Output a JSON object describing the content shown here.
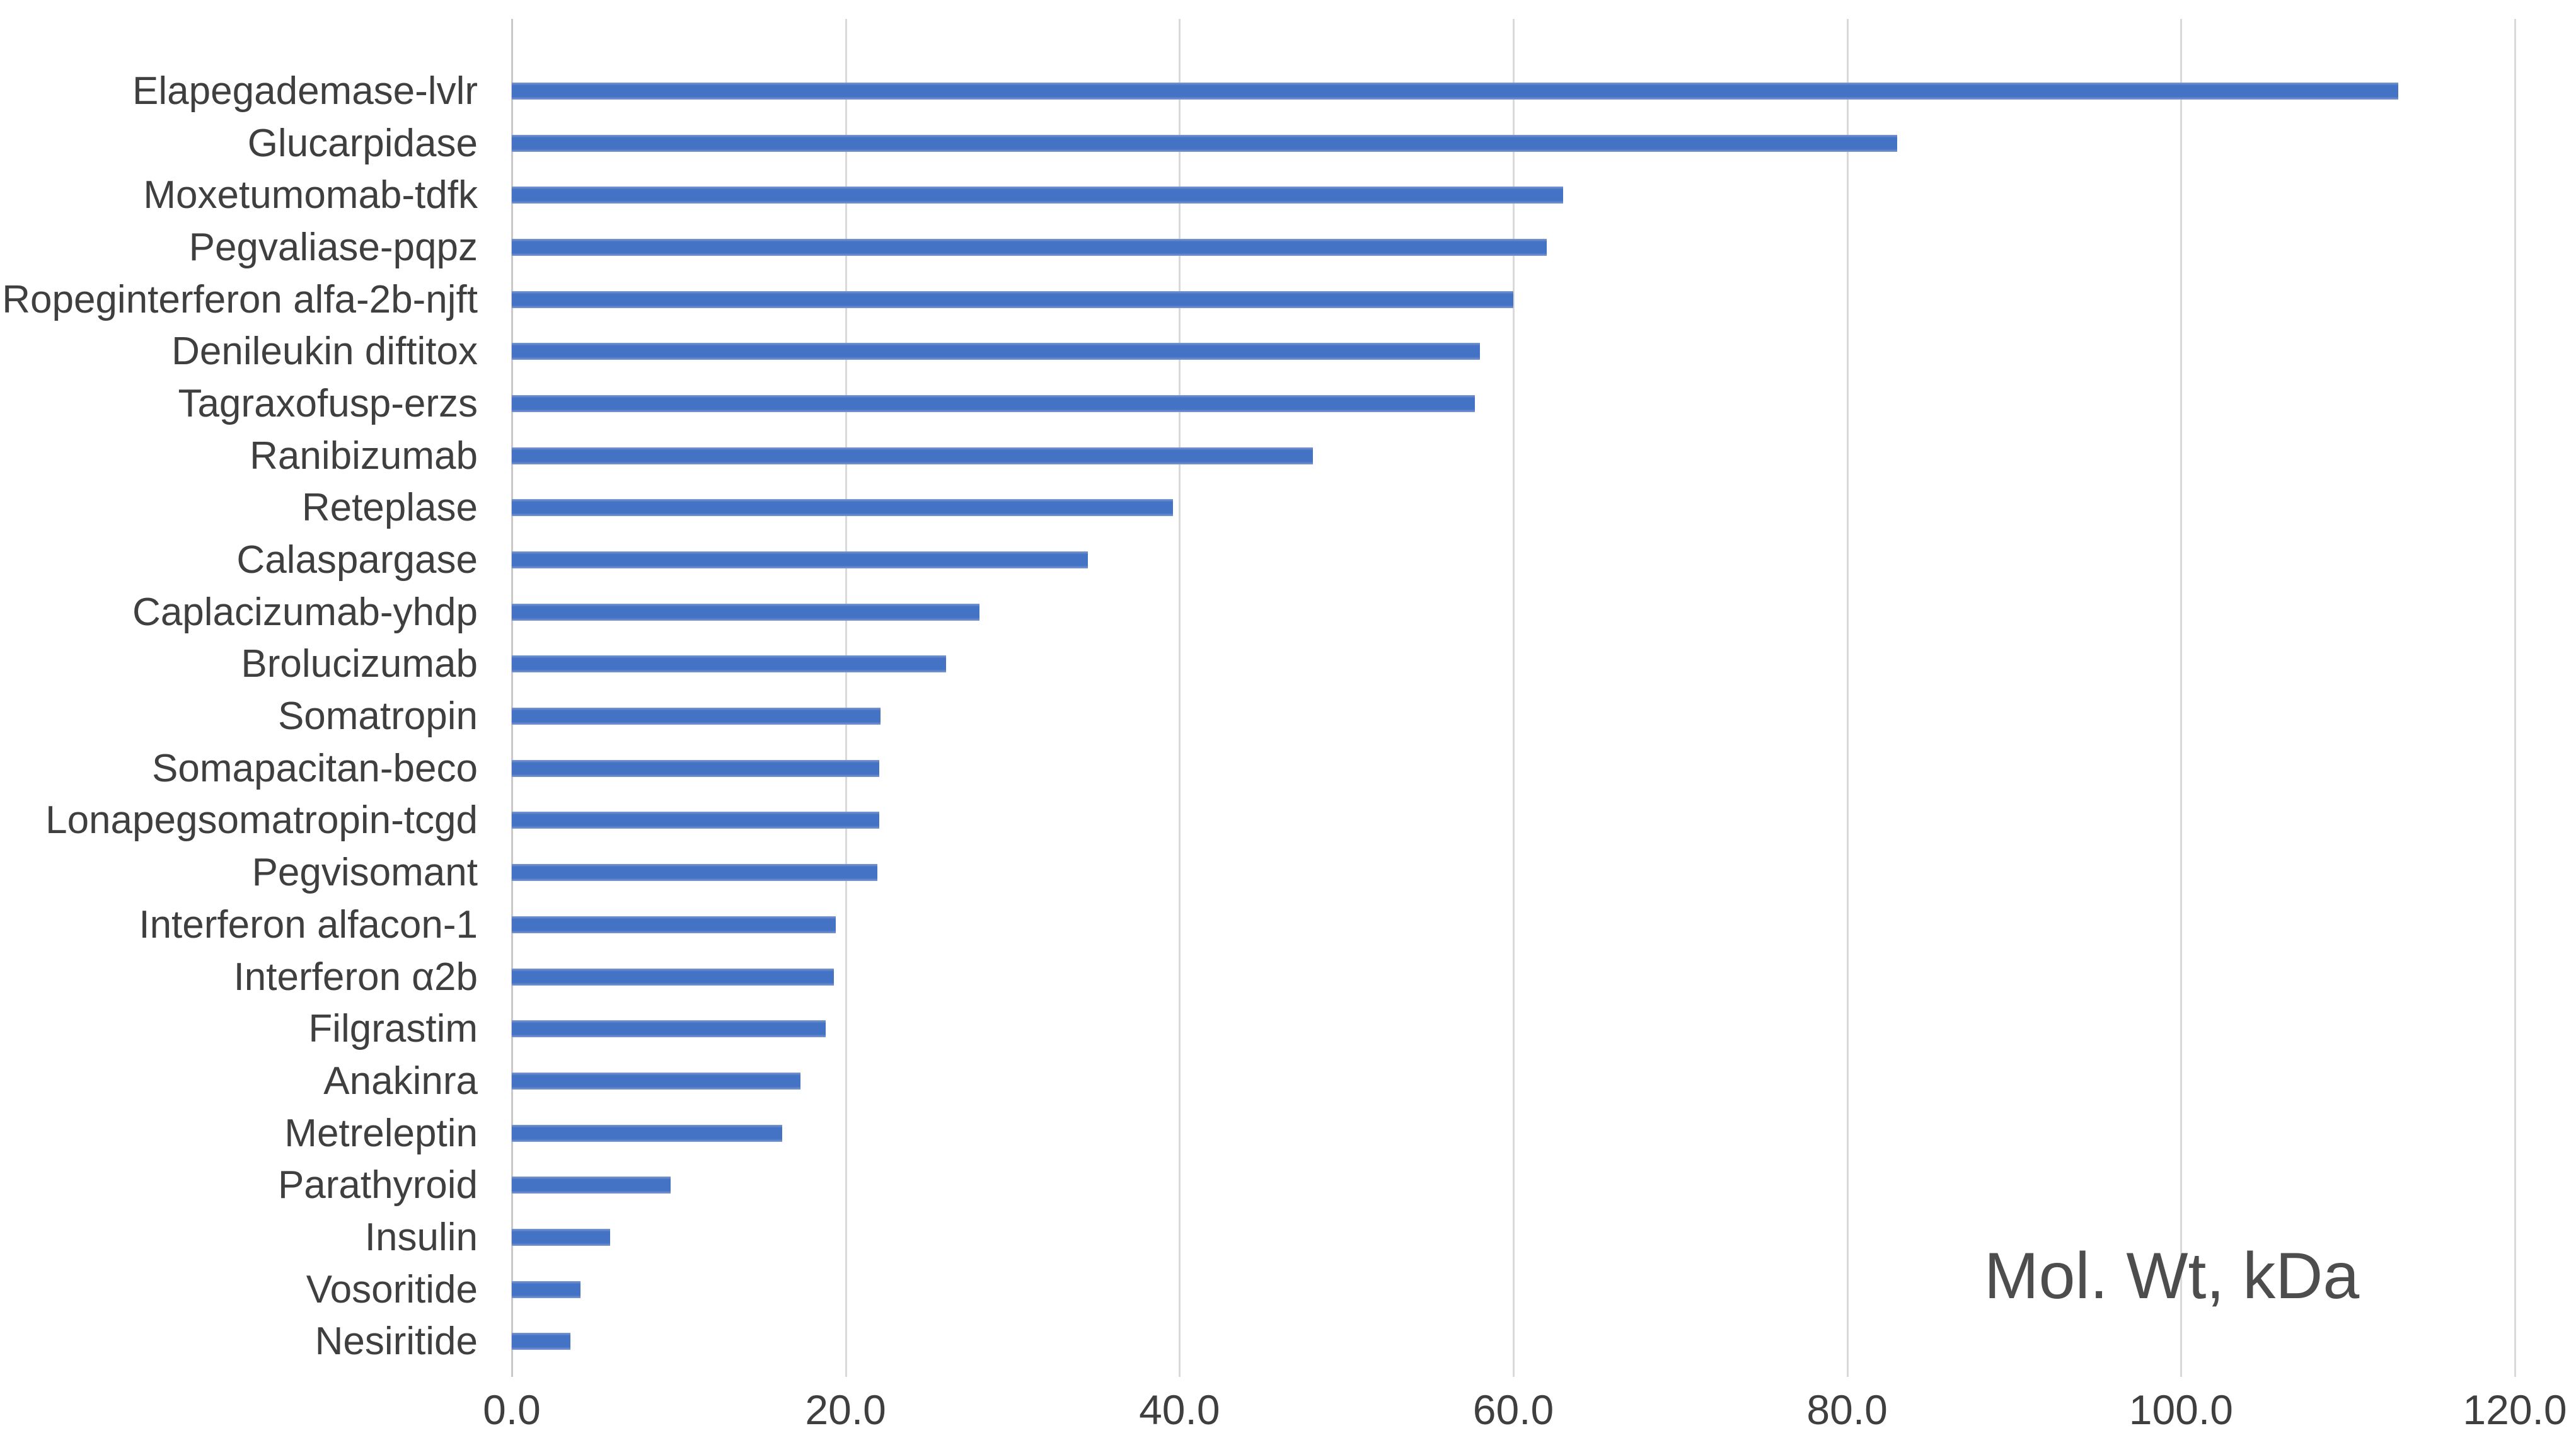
{
  "chart_data": {
    "type": "bar",
    "orientation": "horizontal",
    "title": "",
    "annotation": "Mol. Wt, kDa",
    "xlabel": "",
    "ylabel": "",
    "xlim": [
      0,
      120
    ],
    "grid": "vertical",
    "legend": "none",
    "x_tick_values": [
      0,
      20,
      40,
      60,
      80,
      100,
      120
    ],
    "x_tick_labels": [
      "0.0",
      "20.0",
      "40.0",
      "60.0",
      "80.0",
      "100.0",
      "120.0"
    ],
    "categories": [
      "Elapegademase-lvlr",
      "Glucarpidase",
      "Moxetumomab-tdfk",
      "Pegvaliase-pqpz",
      "Ropeginterferon alfa-2b-njft",
      "Denileukin diftitox",
      "Tagraxofusp-erzs",
      "Ranibizumab",
      "Reteplase",
      "Calaspargase",
      "Caplacizumab-yhdp",
      "Brolucizumab",
      "Somatropin",
      "Somapacitan-beco",
      "Lonapegsomatropin-tcgd",
      "Pegvisomant",
      "Interferon alfacon-1",
      "Interferon α2b",
      "Filgrastim",
      "Anakinra",
      "Metreleptin",
      "Parathyroid",
      "Insulin",
      "Vosoritide",
      "Nesiritide"
    ],
    "values": [
      113,
      83,
      63,
      62,
      60,
      58,
      57.7,
      48,
      39.6,
      34.5,
      28,
      26,
      22.1,
      22,
      22,
      21.9,
      19.4,
      19.3,
      18.8,
      17.3,
      16.2,
      9.5,
      5.9,
      4.1,
      3.5
    ],
    "units": "kDa",
    "colors": {
      "bar": "#4472C4",
      "gridline": "#D9D9D9",
      "axis_line": "#C9C9C9",
      "label_text": "#3F3F3F",
      "annotation_text": "#4D4D4D",
      "background": "#FFFFFF"
    }
  }
}
